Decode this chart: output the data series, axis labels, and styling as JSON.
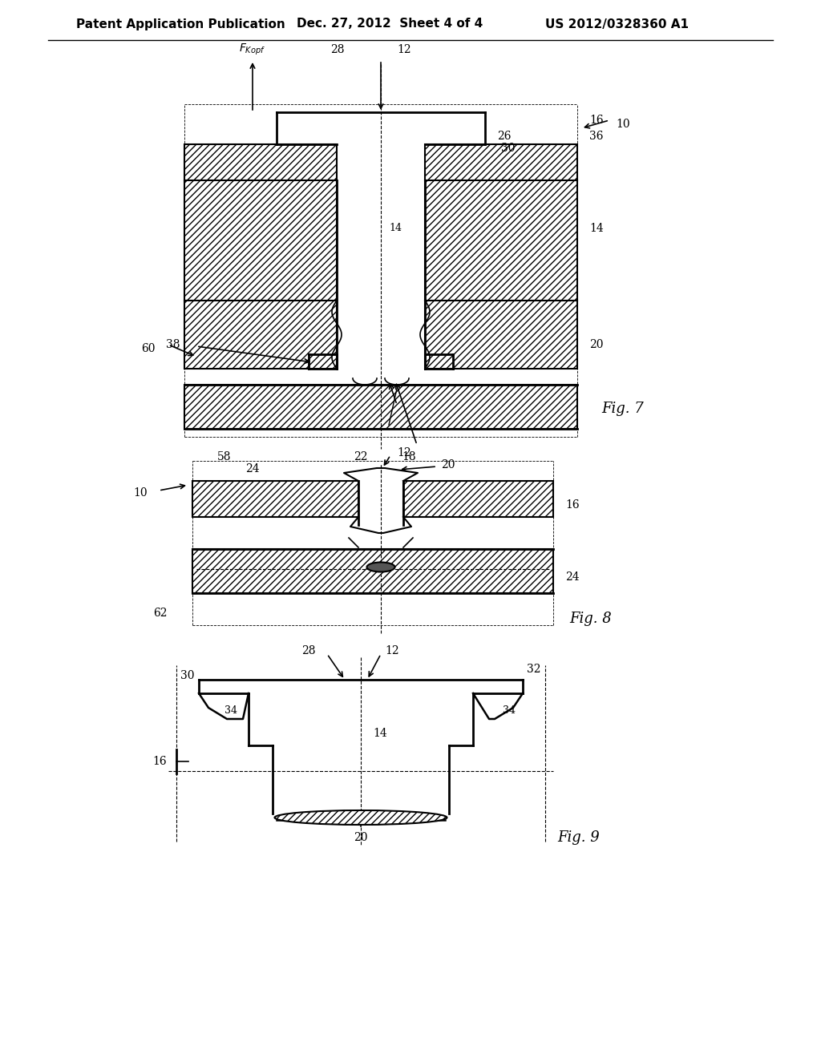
{
  "title_left": "Patent Application Publication",
  "title_mid": "Dec. 27, 2012  Sheet 4 of 4",
  "title_right": "US 2012/0328360 A1",
  "fig7_label": "Fig. 7",
  "fig8_label": "Fig. 8",
  "fig9_label": "Fig. 9",
  "bg_color": "#ffffff",
  "line_color": "#000000",
  "hatch_pattern": "////",
  "font_size_header": 11,
  "font_size_label": 10,
  "font_size_fig": 13
}
